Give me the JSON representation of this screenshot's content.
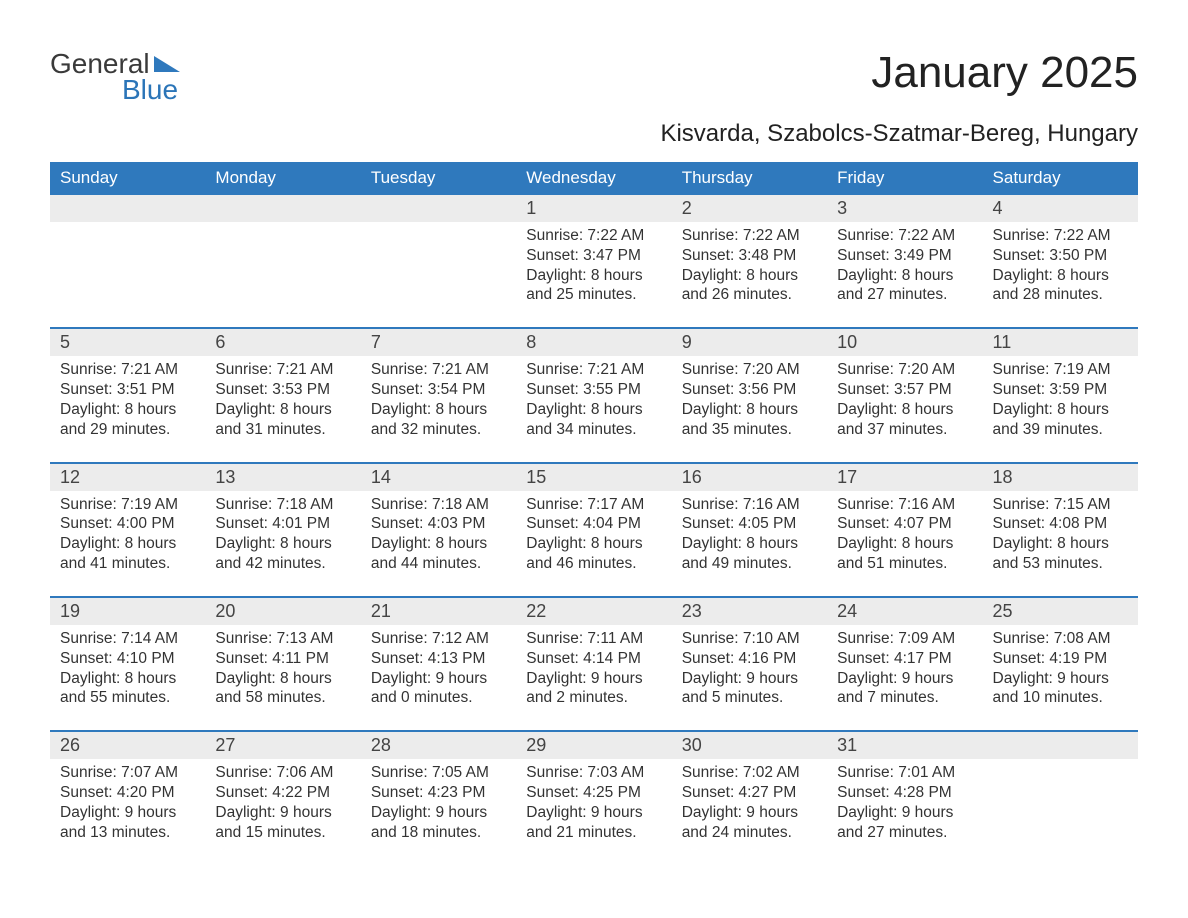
{
  "logo": {
    "text1": "General",
    "text2": "Blue"
  },
  "title": "January 2025",
  "subtitle": "Kisvarda, Szabolcs-Szatmar-Bereg, Hungary",
  "colors": {
    "header_bg": "#2f79bd",
    "header_text": "#ffffff",
    "daynum_bg": "#ececec",
    "text": "#333333",
    "logo_gray": "#3a3a3a",
    "logo_blue": "#2b75b8",
    "page_bg": "#ffffff"
  },
  "calendar": {
    "type": "table",
    "columns": [
      "Sunday",
      "Monday",
      "Tuesday",
      "Wednesday",
      "Thursday",
      "Friday",
      "Saturday"
    ],
    "weeks": [
      [
        null,
        null,
        null,
        {
          "n": "1",
          "sunrise": "7:22 AM",
          "sunset": "3:47 PM",
          "dl": "8 hours and 25 minutes."
        },
        {
          "n": "2",
          "sunrise": "7:22 AM",
          "sunset": "3:48 PM",
          "dl": "8 hours and 26 minutes."
        },
        {
          "n": "3",
          "sunrise": "7:22 AM",
          "sunset": "3:49 PM",
          "dl": "8 hours and 27 minutes."
        },
        {
          "n": "4",
          "sunrise": "7:22 AM",
          "sunset": "3:50 PM",
          "dl": "8 hours and 28 minutes."
        }
      ],
      [
        {
          "n": "5",
          "sunrise": "7:21 AM",
          "sunset": "3:51 PM",
          "dl": "8 hours and 29 minutes."
        },
        {
          "n": "6",
          "sunrise": "7:21 AM",
          "sunset": "3:53 PM",
          "dl": "8 hours and 31 minutes."
        },
        {
          "n": "7",
          "sunrise": "7:21 AM",
          "sunset": "3:54 PM",
          "dl": "8 hours and 32 minutes."
        },
        {
          "n": "8",
          "sunrise": "7:21 AM",
          "sunset": "3:55 PM",
          "dl": "8 hours and 34 minutes."
        },
        {
          "n": "9",
          "sunrise": "7:20 AM",
          "sunset": "3:56 PM",
          "dl": "8 hours and 35 minutes."
        },
        {
          "n": "10",
          "sunrise": "7:20 AM",
          "sunset": "3:57 PM",
          "dl": "8 hours and 37 minutes."
        },
        {
          "n": "11",
          "sunrise": "7:19 AM",
          "sunset": "3:59 PM",
          "dl": "8 hours and 39 minutes."
        }
      ],
      [
        {
          "n": "12",
          "sunrise": "7:19 AM",
          "sunset": "4:00 PM",
          "dl": "8 hours and 41 minutes."
        },
        {
          "n": "13",
          "sunrise": "7:18 AM",
          "sunset": "4:01 PM",
          "dl": "8 hours and 42 minutes."
        },
        {
          "n": "14",
          "sunrise": "7:18 AM",
          "sunset": "4:03 PM",
          "dl": "8 hours and 44 minutes."
        },
        {
          "n": "15",
          "sunrise": "7:17 AM",
          "sunset": "4:04 PM",
          "dl": "8 hours and 46 minutes."
        },
        {
          "n": "16",
          "sunrise": "7:16 AM",
          "sunset": "4:05 PM",
          "dl": "8 hours and 49 minutes."
        },
        {
          "n": "17",
          "sunrise": "7:16 AM",
          "sunset": "4:07 PM",
          "dl": "8 hours and 51 minutes."
        },
        {
          "n": "18",
          "sunrise": "7:15 AM",
          "sunset": "4:08 PM",
          "dl": "8 hours and 53 minutes."
        }
      ],
      [
        {
          "n": "19",
          "sunrise": "7:14 AM",
          "sunset": "4:10 PM",
          "dl": "8 hours and 55 minutes."
        },
        {
          "n": "20",
          "sunrise": "7:13 AM",
          "sunset": "4:11 PM",
          "dl": "8 hours and 58 minutes."
        },
        {
          "n": "21",
          "sunrise": "7:12 AM",
          "sunset": "4:13 PM",
          "dl": "9 hours and 0 minutes."
        },
        {
          "n": "22",
          "sunrise": "7:11 AM",
          "sunset": "4:14 PM",
          "dl": "9 hours and 2 minutes."
        },
        {
          "n": "23",
          "sunrise": "7:10 AM",
          "sunset": "4:16 PM",
          "dl": "9 hours and 5 minutes."
        },
        {
          "n": "24",
          "sunrise": "7:09 AM",
          "sunset": "4:17 PM",
          "dl": "9 hours and 7 minutes."
        },
        {
          "n": "25",
          "sunrise": "7:08 AM",
          "sunset": "4:19 PM",
          "dl": "9 hours and 10 minutes."
        }
      ],
      [
        {
          "n": "26",
          "sunrise": "7:07 AM",
          "sunset": "4:20 PM",
          "dl": "9 hours and 13 minutes."
        },
        {
          "n": "27",
          "sunrise": "7:06 AM",
          "sunset": "4:22 PM",
          "dl": "9 hours and 15 minutes."
        },
        {
          "n": "28",
          "sunrise": "7:05 AM",
          "sunset": "4:23 PM",
          "dl": "9 hours and 18 minutes."
        },
        {
          "n": "29",
          "sunrise": "7:03 AM",
          "sunset": "4:25 PM",
          "dl": "9 hours and 21 minutes."
        },
        {
          "n": "30",
          "sunrise": "7:02 AM",
          "sunset": "4:27 PM",
          "dl": "9 hours and 24 minutes."
        },
        {
          "n": "31",
          "sunrise": "7:01 AM",
          "sunset": "4:28 PM",
          "dl": "9 hours and 27 minutes."
        },
        null
      ]
    ],
    "labels": {
      "sunrise": "Sunrise: ",
      "sunset": "Sunset: ",
      "daylight": "Daylight: "
    }
  }
}
